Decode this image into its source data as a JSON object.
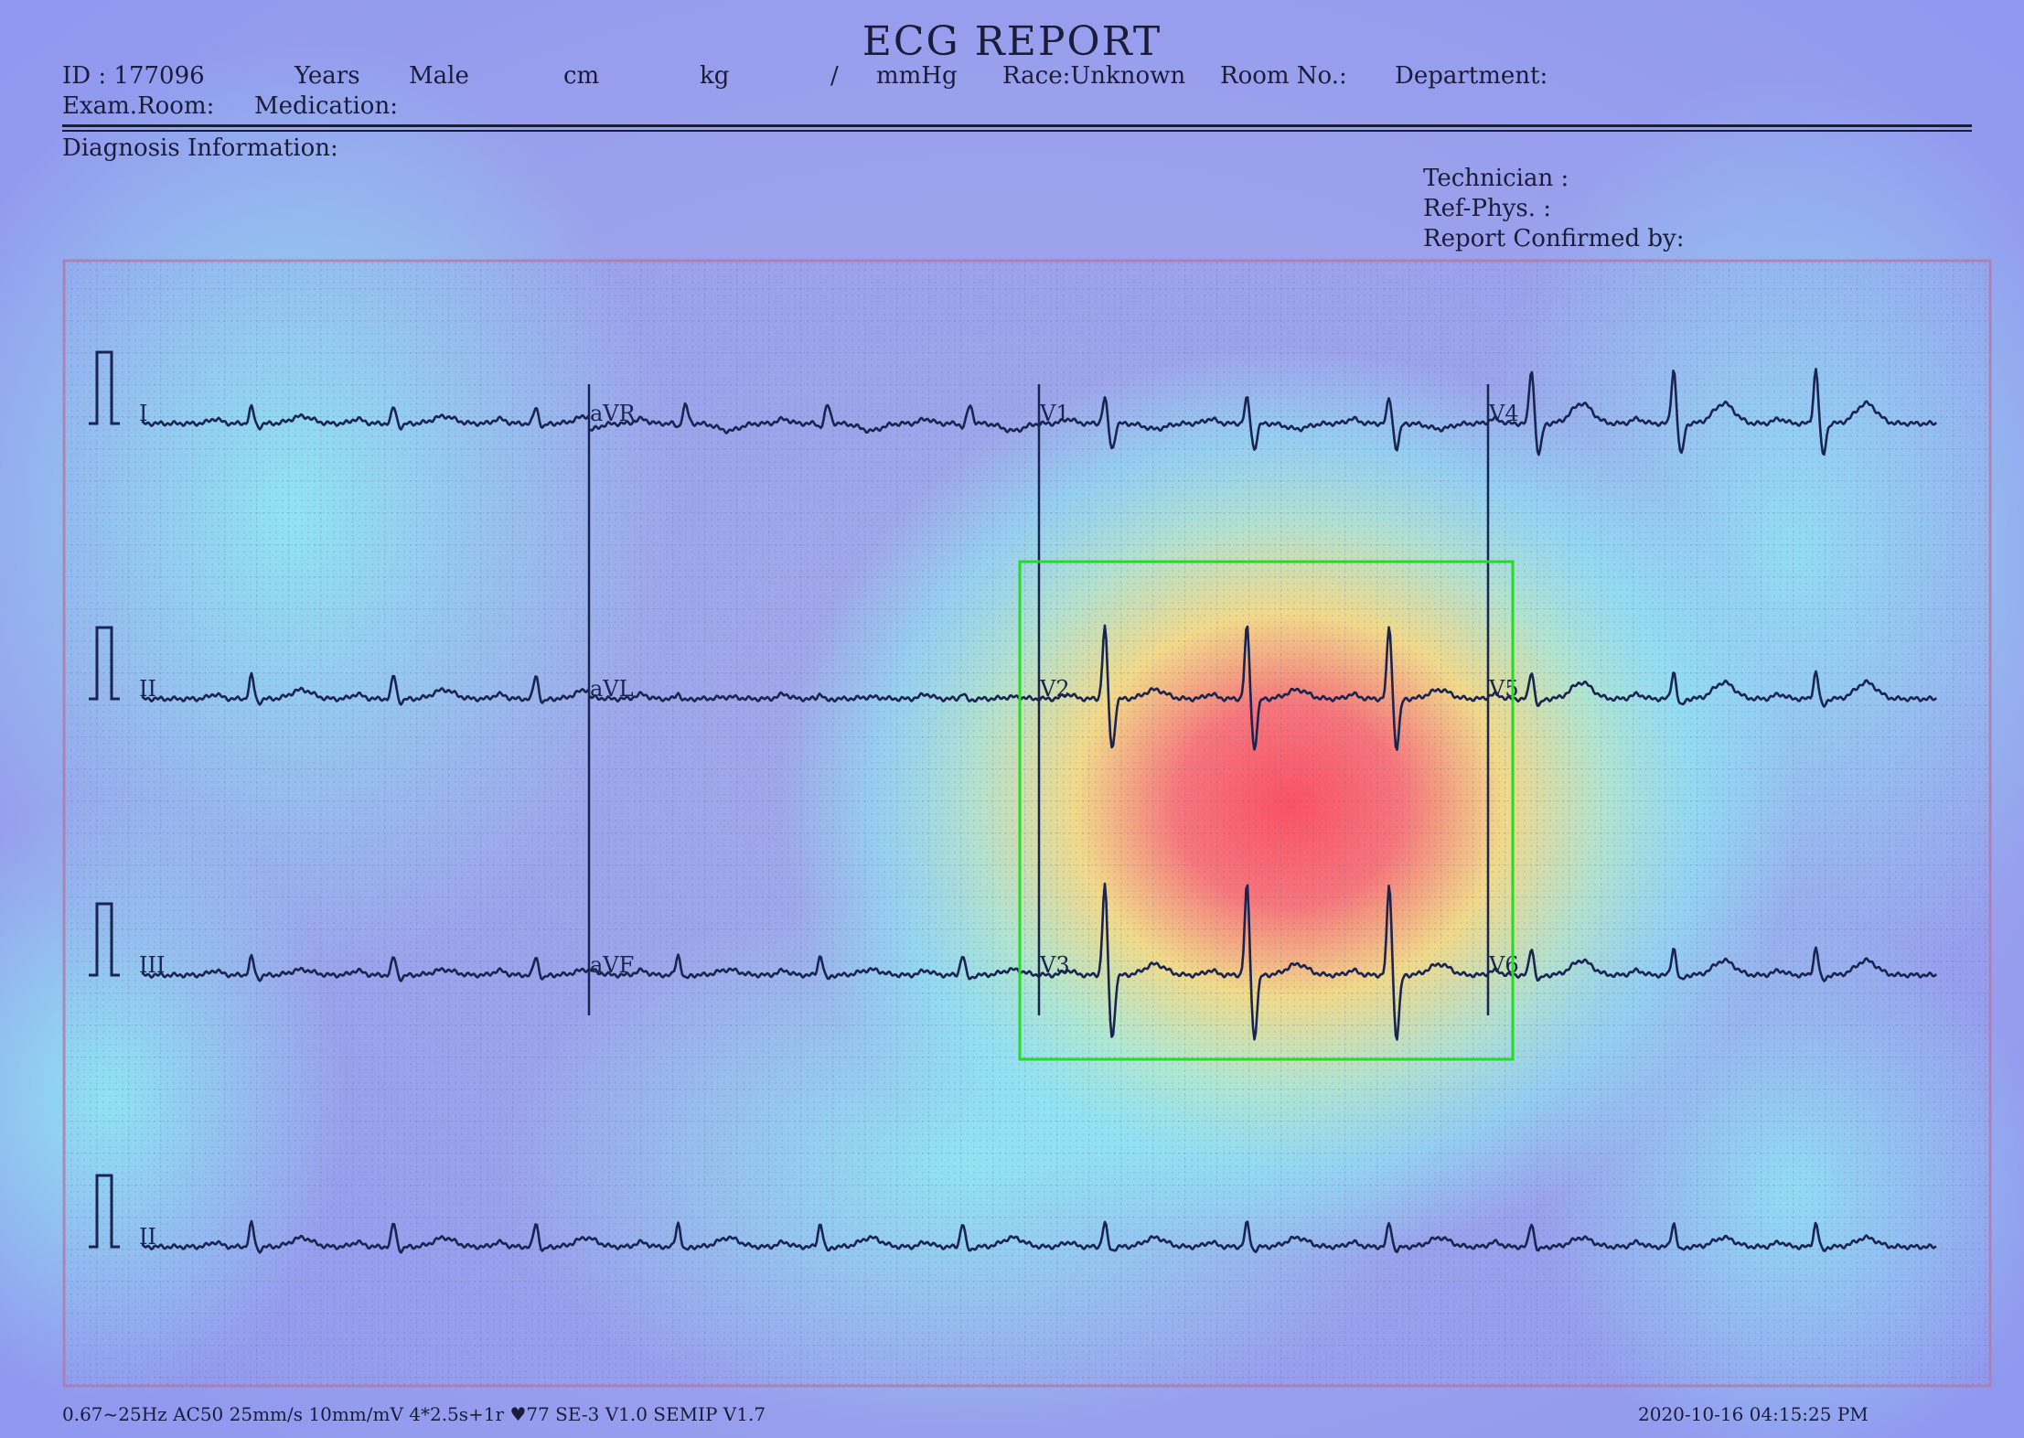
{
  "report": {
    "title": "ECG REPORT",
    "patient": {
      "id": "ID : 177096",
      "age_unit": "Years",
      "sex": "Male",
      "height_unit": "cm",
      "weight_unit": "kg",
      "bp_sep": "/",
      "bp_unit": "mmHg",
      "race": "Race:Unknown",
      "room": "Room  No.:",
      "department": "Department:",
      "exam_room": "Exam.Room:",
      "medication": "Medication:"
    },
    "diagnosis_label": "Diagnosis  Information:",
    "technician": "Technician :",
    "ref_phys": "Ref-Phys. :",
    "report_confirmed": "Report  Confirmed  by:"
  },
  "ecg": {
    "leads": [
      "I",
      "aVR",
      "V1",
      "V4",
      "II",
      "aVL",
      "V2",
      "V5",
      "III",
      "aVF",
      "V3",
      "V6",
      "II"
    ],
    "rhythm_lead": "II"
  },
  "footer": {
    "settings": "0.67~25Hz   AC50   25mm/s   10mm/mV   4*2.5s+1r   ♥77    SE-3  V1.0   SEMIP  V1.7",
    "timestamp": "2020-10-16     04:15:25  PM"
  },
  "colors": {
    "highlight_box": "#22dd22",
    "trace": "#1a2450",
    "heat_hot": "#ff5a5a",
    "heat_warm": "#ffe27a",
    "heat_cool": "#8ef0f6"
  }
}
